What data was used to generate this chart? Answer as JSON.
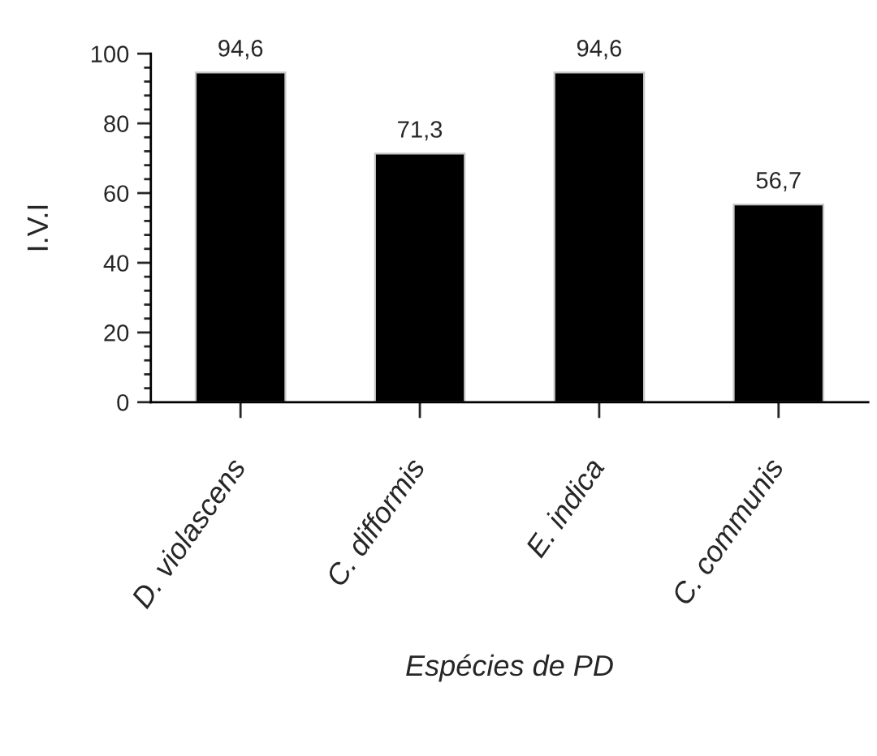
{
  "chart_data": {
    "type": "bar",
    "categories": [
      "D. violascens",
      "C. difformis",
      "E. indica",
      "C. communis"
    ],
    "values": [
      94.6,
      71.3,
      94.6,
      56.7
    ],
    "value_labels": [
      "94,6",
      "71,3",
      "94,6",
      "56,7"
    ],
    "color": "#000000",
    "xlabel": "Espécies de PD",
    "ylabel": "I.V.I",
    "ylim": [
      0,
      100
    ],
    "yticks": [
      0,
      20,
      40,
      60,
      80,
      100
    ]
  }
}
